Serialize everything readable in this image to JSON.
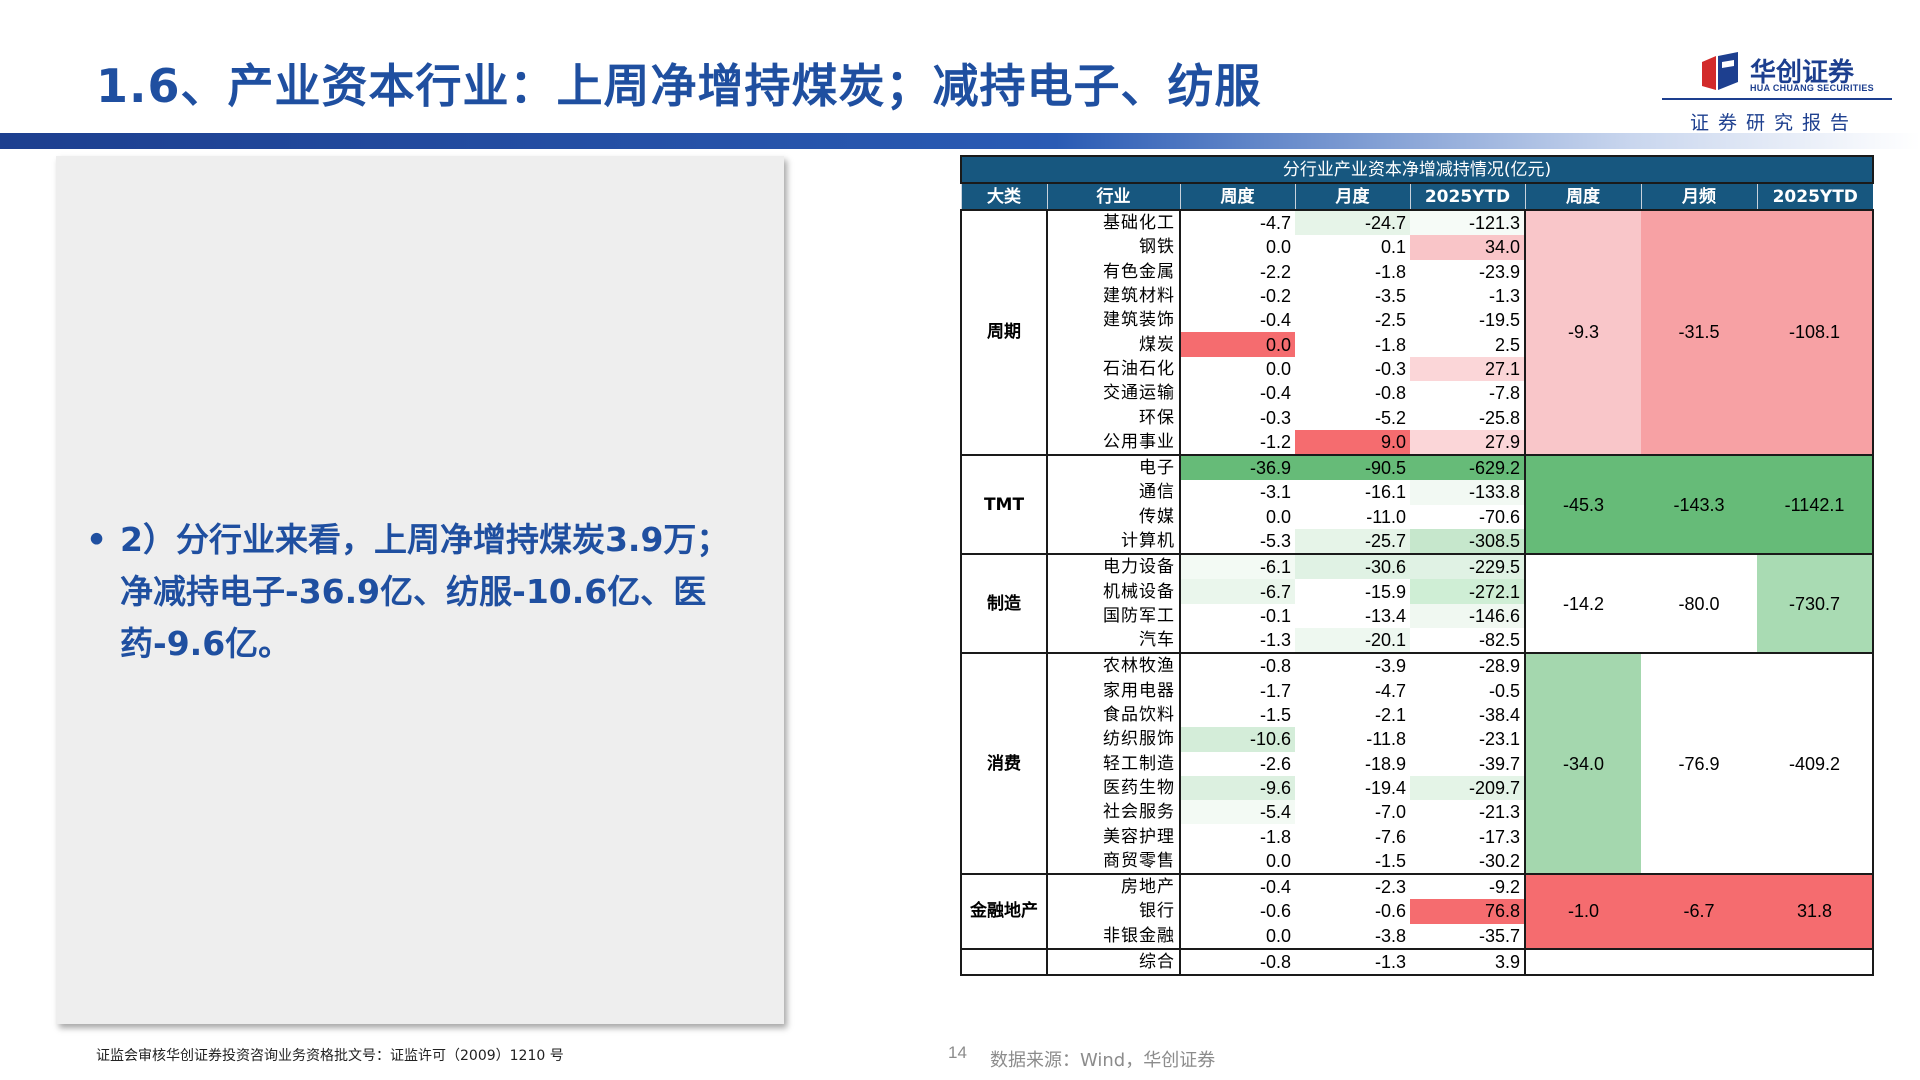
{
  "title": "1.6、产业资本行业：上周净增持煤炭；减持电子、纺服",
  "logo": {
    "name_cn": "华创证券",
    "name_en": "HUA CHUANG SECURITIES",
    "subtitle": "证券研究报告"
  },
  "bullet": "2）分行业来看，上周净增持煤炭3.9万；净减持电子-36.9亿、纺服-10.6亿、医药-9.6亿。",
  "table": {
    "caption": "分行业产业资本净增减持情况(亿元)",
    "headers": [
      "大类",
      "行业",
      "周度",
      "月度",
      "2025YTD",
      "周度",
      "月频",
      "2025YTD"
    ],
    "groups": [
      {
        "name": "周期",
        "summary": {
          "week": "-9.3",
          "month": "-31.5",
          "ytd": "-108.1",
          "colors": [
            "#f9c6c9",
            "#f7a1a4",
            "#f7a1a4"
          ]
        },
        "rows": [
          {
            "industry": "基础化工",
            "week": "-4.7",
            "month": "-24.7",
            "ytd": "-121.3",
            "colors": [
              "#ffffff",
              "#e6f4e8",
              "#f6fbf7"
            ]
          },
          {
            "industry": "钢铁",
            "week": "0.0",
            "month": "0.1",
            "ytd": "34.0",
            "colors": [
              "#ffffff",
              "#ffffff",
              "#f9c5c8"
            ]
          },
          {
            "industry": "有色金属",
            "week": "-2.2",
            "month": "-1.8",
            "ytd": "-23.9",
            "colors": [
              "#ffffff",
              "#ffffff",
              "#ffffff"
            ]
          },
          {
            "industry": "建筑材料",
            "week": "-0.2",
            "month": "-3.5",
            "ytd": "-1.3",
            "colors": [
              "#ffffff",
              "#ffffff",
              "#ffffff"
            ]
          },
          {
            "industry": "建筑装饰",
            "week": "-0.4",
            "month": "-2.5",
            "ytd": "-19.5",
            "colors": [
              "#ffffff",
              "#ffffff",
              "#ffffff"
            ]
          },
          {
            "industry": "煤炭",
            "week": "0.0",
            "month": "-1.8",
            "ytd": "2.5",
            "colors": [
              "#f56c6f",
              "#ffffff",
              "#ffffff"
            ]
          },
          {
            "industry": "石油石化",
            "week": "0.0",
            "month": "-0.3",
            "ytd": "27.1",
            "colors": [
              "#ffffff",
              "#ffffff",
              "#fbd6d8"
            ]
          },
          {
            "industry": "交通运输",
            "week": "-0.4",
            "month": "-0.8",
            "ytd": "-7.8",
            "colors": [
              "#ffffff",
              "#ffffff",
              "#ffffff"
            ]
          },
          {
            "industry": "环保",
            "week": "-0.3",
            "month": "-5.2",
            "ytd": "-25.8",
            "colors": [
              "#ffffff",
              "#ffffff",
              "#ffffff"
            ]
          },
          {
            "industry": "公用事业",
            "week": "-1.2",
            "month": "9.0",
            "ytd": "27.9",
            "colors": [
              "#ffffff",
              "#f56c6f",
              "#fbd6d8"
            ]
          }
        ]
      },
      {
        "name": "TMT",
        "summary": {
          "week": "-45.3",
          "month": "-143.3",
          "ytd": "-1142.1",
          "colors": [
            "#66bb78",
            "#66bb78",
            "#66bb78"
          ]
        },
        "rows": [
          {
            "industry": "电子",
            "week": "-36.9",
            "month": "-90.5",
            "ytd": "-629.2",
            "colors": [
              "#66bb78",
              "#66bb78",
              "#66bb78"
            ]
          },
          {
            "industry": "通信",
            "week": "-3.1",
            "month": "-16.1",
            "ytd": "-133.8",
            "colors": [
              "#ffffff",
              "#ffffff",
              "#f2f9f3"
            ]
          },
          {
            "industry": "传媒",
            "week": "0.0",
            "month": "-11.0",
            "ytd": "-70.6",
            "colors": [
              "#ffffff",
              "#ffffff",
              "#ffffff"
            ]
          },
          {
            "industry": "计算机",
            "week": "-5.3",
            "month": "-25.7",
            "ytd": "-308.5",
            "colors": [
              "#ffffff",
              "#e6f4e8",
              "#c6e7cc"
            ]
          }
        ]
      },
      {
        "name": "制造",
        "summary": {
          "week": "-14.2",
          "month": "-80.0",
          "ytd": "-730.7",
          "colors": [
            "#ffffff",
            "#ffffff",
            "#a9dbb3"
          ]
        },
        "rows": [
          {
            "industry": "电力设备",
            "week": "-6.1",
            "month": "-30.6",
            "ytd": "-229.5",
            "colors": [
              "#f3faf4",
              "#e0f2e4",
              "#e0f2e4"
            ]
          },
          {
            "industry": "机械设备",
            "week": "-6.7",
            "month": "-15.9",
            "ytd": "-272.1",
            "colors": [
              "#eaf6ec",
              "#ffffff",
              "#cfeed5"
            ]
          },
          {
            "industry": "国防军工",
            "week": "-0.1",
            "month": "-13.4",
            "ytd": "-146.6",
            "colors": [
              "#ffffff",
              "#ffffff",
              "#f0f8f1"
            ]
          },
          {
            "industry": "汽车",
            "week": "-1.3",
            "month": "-20.1",
            "ytd": "-82.5",
            "colors": [
              "#ffffff",
              "#eef8f0",
              "#ffffff"
            ]
          }
        ]
      },
      {
        "name": "消费",
        "summary": {
          "week": "-34.0",
          "month": "-76.9",
          "ytd": "-409.2",
          "colors": [
            "#a4d7ae",
            "#ffffff",
            "#ffffff"
          ]
        },
        "rows": [
          {
            "industry": "农林牧渔",
            "week": "-0.8",
            "month": "-3.9",
            "ytd": "-28.9",
            "colors": [
              "#ffffff",
              "#ffffff",
              "#ffffff"
            ]
          },
          {
            "industry": "家用电器",
            "week": "-1.7",
            "month": "-4.7",
            "ytd": "-0.5",
            "colors": [
              "#ffffff",
              "#ffffff",
              "#ffffff"
            ]
          },
          {
            "industry": "食品饮料",
            "week": "-1.5",
            "month": "-2.1",
            "ytd": "-38.4",
            "colors": [
              "#ffffff",
              "#ffffff",
              "#ffffff"
            ]
          },
          {
            "industry": "纺织服饰",
            "week": "-10.6",
            "month": "-11.8",
            "ytd": "-23.1",
            "colors": [
              "#d4edd9",
              "#ffffff",
              "#ffffff"
            ]
          },
          {
            "industry": "轻工制造",
            "week": "-2.6",
            "month": "-18.9",
            "ytd": "-39.7",
            "colors": [
              "#ffffff",
              "#ffffff",
              "#ffffff"
            ]
          },
          {
            "industry": "医药生物",
            "week": "-9.6",
            "month": "-19.4",
            "ytd": "-209.7",
            "colors": [
              "#dcf0e0",
              "#ffffff",
              "#e4f4e7"
            ]
          },
          {
            "industry": "社会服务",
            "week": "-5.4",
            "month": "-7.0",
            "ytd": "-21.3",
            "colors": [
              "#f3faf4",
              "#ffffff",
              "#ffffff"
            ]
          },
          {
            "industry": "美容护理",
            "week": "-1.8",
            "month": "-7.6",
            "ytd": "-17.3",
            "colors": [
              "#ffffff",
              "#ffffff",
              "#ffffff"
            ]
          },
          {
            "industry": "商贸零售",
            "week": "0.0",
            "month": "-1.5",
            "ytd": "-30.2",
            "colors": [
              "#ffffff",
              "#ffffff",
              "#ffffff"
            ]
          }
        ]
      },
      {
        "name": "金融地产",
        "summary": {
          "week": "-1.0",
          "month": "-6.7",
          "ytd": "31.8",
          "colors": [
            "#f56c6f",
            "#f56c6f",
            "#f56c6f"
          ]
        },
        "rows": [
          {
            "industry": "房地产",
            "week": "-0.4",
            "month": "-2.3",
            "ytd": "-9.2",
            "colors": [
              "#ffffff",
              "#ffffff",
              "#ffffff"
            ]
          },
          {
            "industry": "银行",
            "week": "-0.6",
            "month": "-0.6",
            "ytd": "76.8",
            "colors": [
              "#ffffff",
              "#ffffff",
              "#f56c6f"
            ]
          },
          {
            "industry": "非银金融",
            "week": "0.0",
            "month": "-3.8",
            "ytd": "-35.7",
            "colors": [
              "#ffffff",
              "#ffffff",
              "#ffffff"
            ]
          }
        ]
      },
      {
        "name": "",
        "summary": {
          "week": "",
          "month": "",
          "ytd": "",
          "colors": [
            "#ffffff",
            "#ffffff",
            "#ffffff"
          ]
        },
        "rows": [
          {
            "industry": "综合",
            "week": "-0.8",
            "month": "-1.3",
            "ytd": "3.9",
            "colors": [
              "#ffffff",
              "#ffffff",
              "#ffffff"
            ]
          }
        ]
      }
    ]
  },
  "footnote": "证监会审核华创证券投资咨询业务资格批文号：证监许可（2009）1210 号",
  "page_number": "14",
  "source": "数据来源：Wind，华创证券"
}
